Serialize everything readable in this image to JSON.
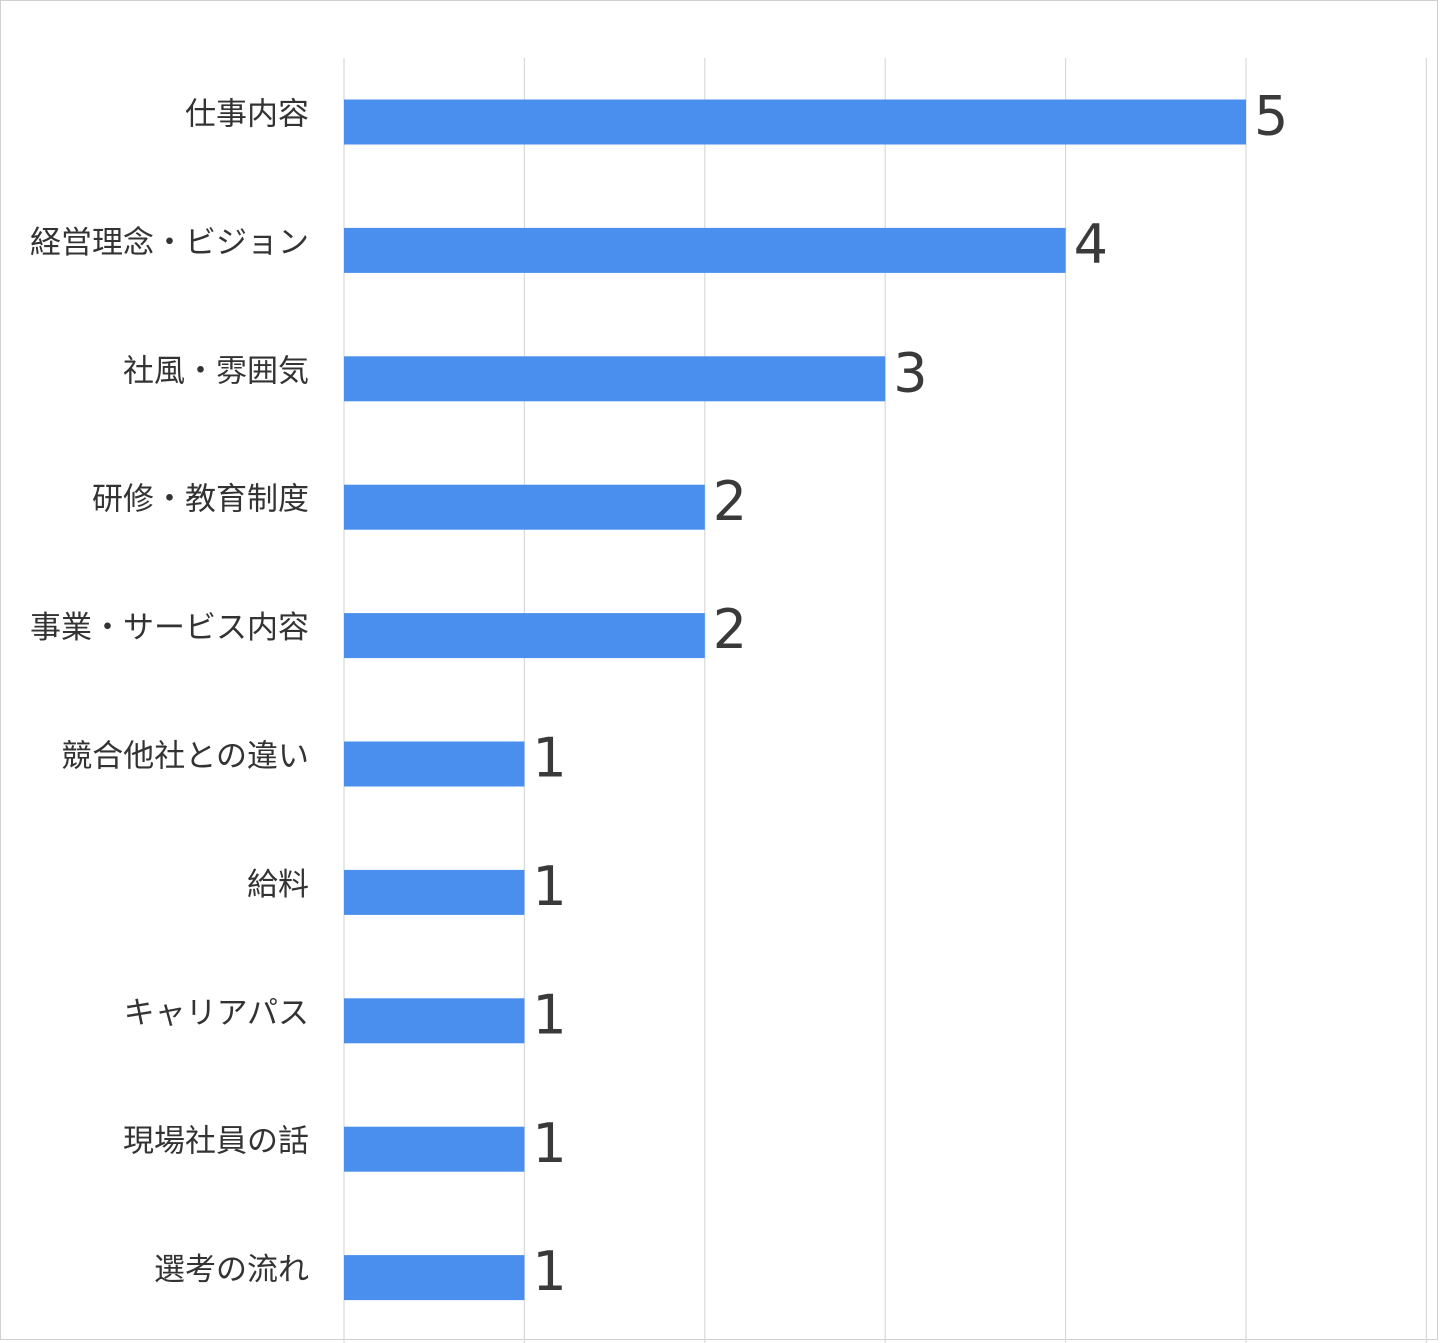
{
  "chart_data": {
    "type": "bar",
    "orientation": "horizontal",
    "categories": [
      "仕事内容",
      "経営理念・ビジョン",
      "社風・雰囲気",
      "研修・教育制度",
      "事業・サービス内容",
      "競合他社との違い",
      "給料",
      "キャリアパス",
      "現場社員の話",
      "選考の流れ"
    ],
    "values": [
      5,
      4,
      3,
      2,
      2,
      1,
      1,
      1,
      1,
      1
    ],
    "xlim": [
      0,
      6
    ],
    "grid": true,
    "data_labels": true,
    "bar_color": "#4a8fee",
    "grid_color": "#d9d9d9",
    "label_color": "#333333"
  }
}
